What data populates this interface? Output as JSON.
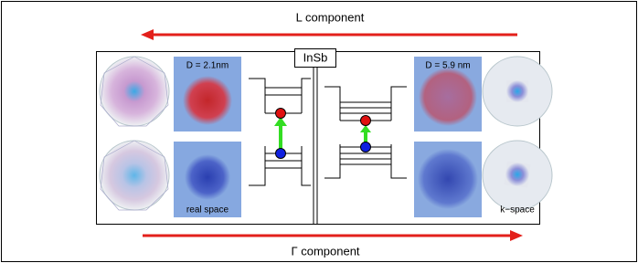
{
  "top_arrow_label": "L component",
  "material": "InSb",
  "left": {
    "size_label": "D = 2.1nm",
    "space_label": "real space"
  },
  "right": {
    "size_label": "D = 5.9 nm",
    "space_label": "k−space"
  },
  "bottom_arrow_label": "Γ component"
}
